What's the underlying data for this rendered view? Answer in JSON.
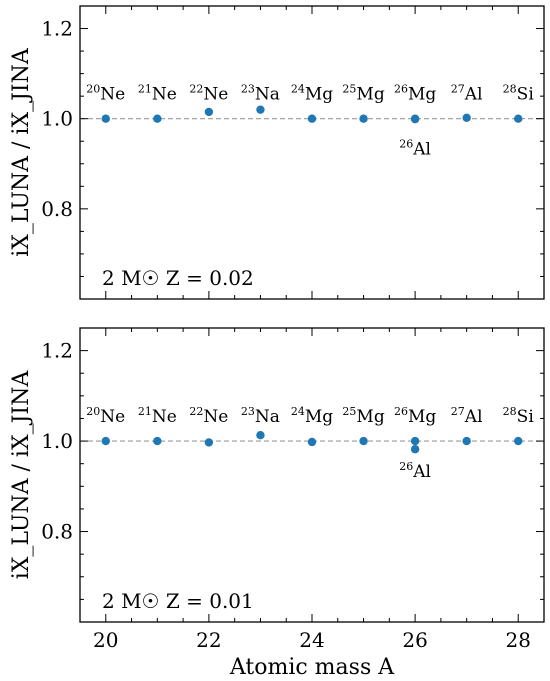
{
  "chart_data": {
    "type": "scatter",
    "xlabel": "Atomic mass A",
    "ylabel": "iX_LUNA / iX_JINA",
    "xlim": [
      19.5,
      28.5
    ],
    "xticks": [
      20,
      22,
      24,
      26,
      28
    ],
    "ylim": [
      0.6,
      1.25
    ],
    "yticks": [
      0.8,
      1.0,
      1.2
    ],
    "reference_line": 1.0,
    "marker_color": "#1f77b4",
    "panels": [
      {
        "annotation": "2 M☉ Z = 0.02",
        "points": [
          {
            "label_sup": "20",
            "label_el": "Ne",
            "x": 20,
            "y": 1.0
          },
          {
            "label_sup": "21",
            "label_el": "Ne",
            "x": 21,
            "y": 1.0
          },
          {
            "label_sup": "22",
            "label_el": "Ne",
            "x": 22,
            "y": 1.015
          },
          {
            "label_sup": "23",
            "label_el": "Na",
            "x": 23,
            "y": 1.02
          },
          {
            "label_sup": "24",
            "label_el": "Mg",
            "x": 24,
            "y": 1.0
          },
          {
            "label_sup": "25",
            "label_el": "Mg",
            "x": 25,
            "y": 1.0
          },
          {
            "label_sup": "26",
            "label_el": "Mg",
            "x": 26,
            "y": 1.0
          },
          {
            "label_sup": "27",
            "label_el": "Al",
            "x": 27,
            "y": 1.002
          },
          {
            "label_sup": "28",
            "label_el": "Si",
            "x": 28,
            "y": 1.0
          }
        ],
        "below_points": [
          {
            "label_sup": "26",
            "label_el": "Al",
            "x": 26,
            "y": 0.999
          }
        ]
      },
      {
        "annotation": "2 M☉ Z = 0.01",
        "points": [
          {
            "label_sup": "20",
            "label_el": "Ne",
            "x": 20,
            "y": 1.0
          },
          {
            "label_sup": "21",
            "label_el": "Ne",
            "x": 21,
            "y": 1.0
          },
          {
            "label_sup": "22",
            "label_el": "Ne",
            "x": 22,
            "y": 0.997
          },
          {
            "label_sup": "23",
            "label_el": "Na",
            "x": 23,
            "y": 1.013
          },
          {
            "label_sup": "24",
            "label_el": "Mg",
            "x": 24,
            "y": 0.998
          },
          {
            "label_sup": "25",
            "label_el": "Mg",
            "x": 25,
            "y": 1.0
          },
          {
            "label_sup": "26",
            "label_el": "Mg",
            "x": 26,
            "y": 1.0
          },
          {
            "label_sup": "27",
            "label_el": "Al",
            "x": 27,
            "y": 1.0
          },
          {
            "label_sup": "28",
            "label_el": "Si",
            "x": 28,
            "y": 1.0
          }
        ],
        "below_points": [
          {
            "label_sup": "26",
            "label_el": "Al",
            "x": 26,
            "y": 0.982
          }
        ]
      }
    ]
  }
}
